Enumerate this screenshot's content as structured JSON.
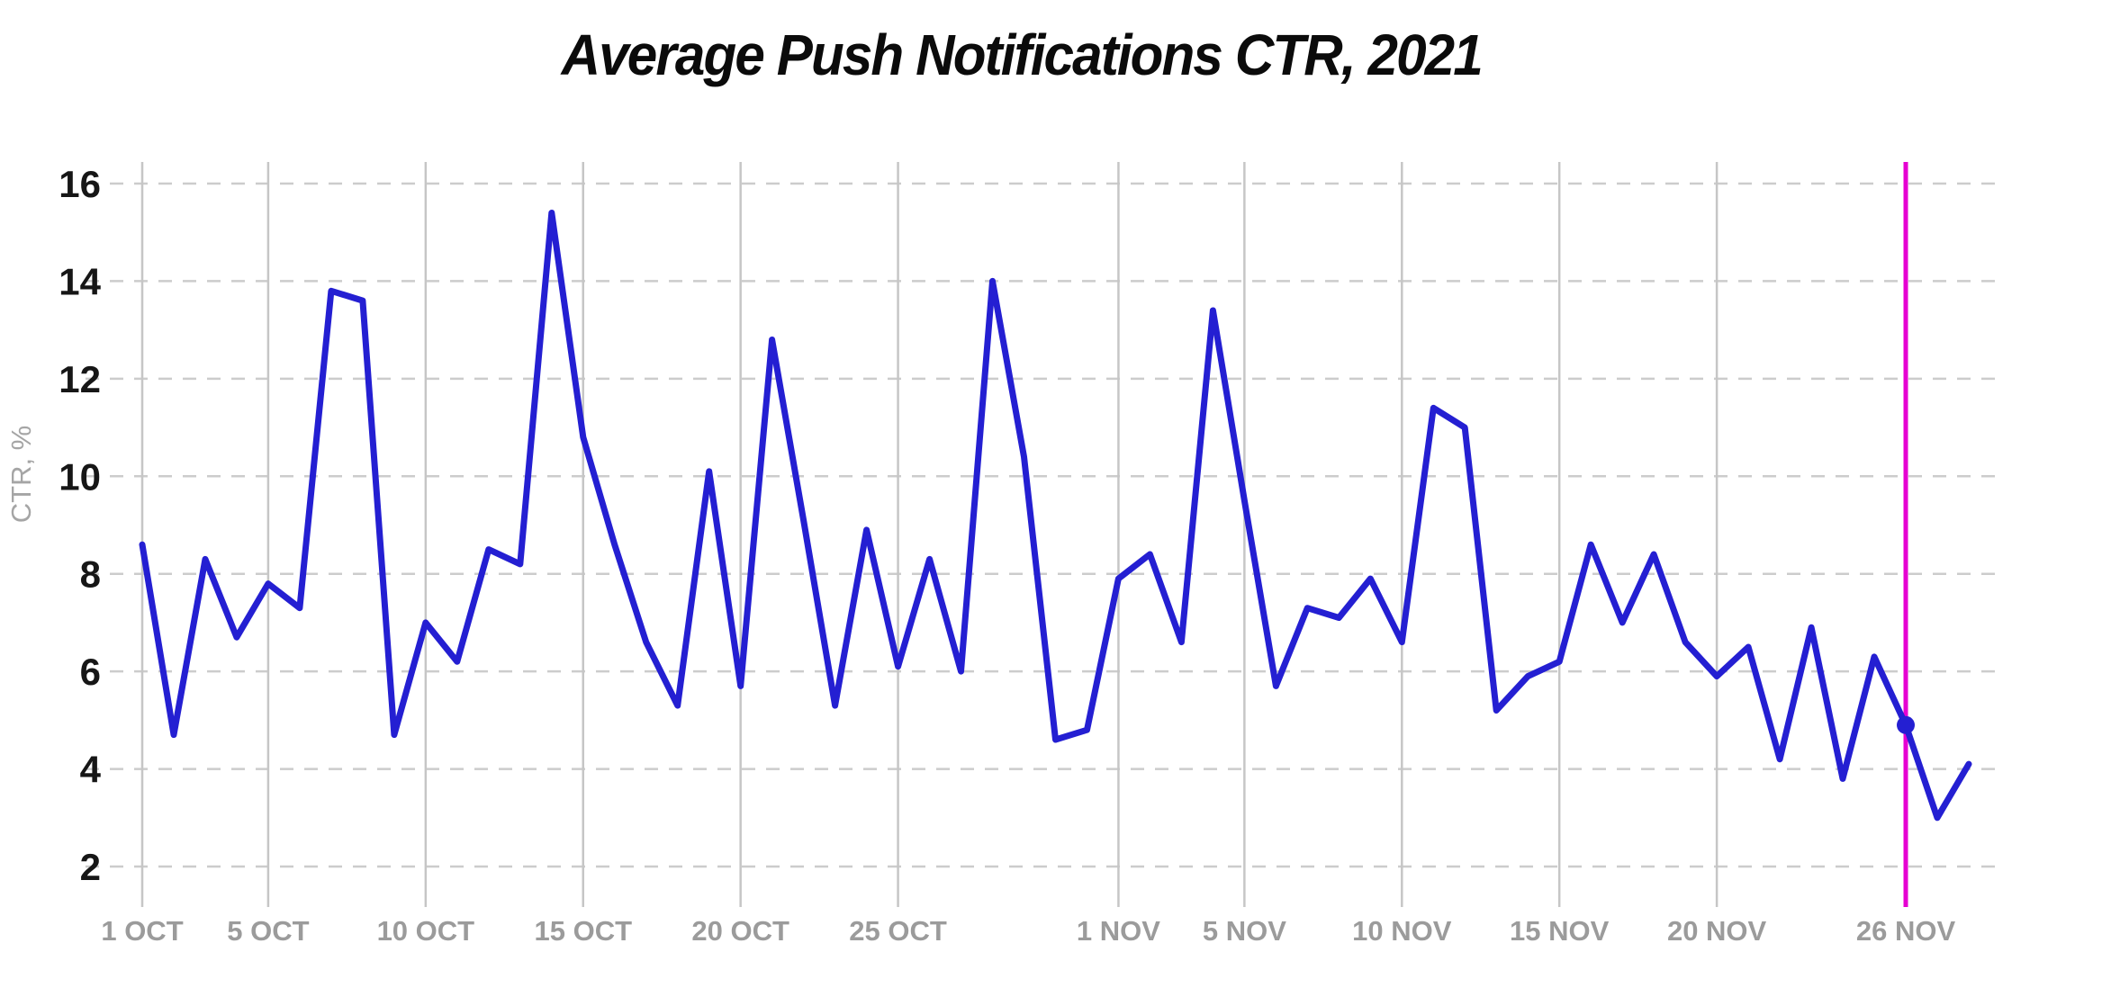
{
  "title": "Average Push Notifications CTR, 2021",
  "colors": {
    "line": "#241fd2",
    "highlight": "#e600d2",
    "grid": "#cccccc",
    "vgrid": "#c6c6c6",
    "tick_gray": "#9b9b9b",
    "tick_dark": "#161616",
    "title": "#0b0b0b",
    "background": "#ffffff"
  },
  "chart_data": {
    "type": "line",
    "title": "Average Push Notifications CTR, 2021",
    "ylabel": "CTR, %",
    "xlabel": "",
    "legend_position": "none",
    "grid": {
      "horizontal": "dashed",
      "vertical": "solid"
    },
    "ylim": [
      2,
      16
    ],
    "yticks": [
      2,
      4,
      6,
      8,
      10,
      12,
      14,
      16
    ],
    "x": [
      "1 OCT",
      "2 OCT",
      "3 OCT",
      "4 OCT",
      "5 OCT",
      "6 OCT",
      "7 OCT",
      "8 OCT",
      "9 OCT",
      "10 OCT",
      "11 OCT",
      "12 OCT",
      "13 OCT",
      "14 OCT",
      "15 OCT",
      "16 OCT",
      "17 OCT",
      "18 OCT",
      "19 OCT",
      "20 OCT",
      "21 OCT",
      "22 OCT",
      "23 OCT",
      "24 OCT",
      "25 OCT",
      "26 OCT",
      "27 OCT",
      "28 OCT",
      "29 OCT",
      "30 OCT",
      "31 OCT",
      "1 NOV",
      "2 NOV",
      "3 NOV",
      "4 NOV",
      "5 NOV",
      "6 NOV",
      "7 NOV",
      "8 NOV",
      "9 NOV",
      "10 NOV",
      "11 NOV",
      "12 NOV",
      "13 NOV",
      "14 NOV",
      "15 NOV",
      "16 NOV",
      "17 NOV",
      "18 NOV",
      "19 NOV",
      "20 NOV",
      "21 NOV",
      "22 NOV",
      "23 NOV",
      "24 NOV",
      "25 NOV",
      "26 NOV",
      "27 NOV",
      "28 NOV"
    ],
    "series": [
      {
        "name": "Average Push Notifications CTR, %",
        "values": [
          8.6,
          4.7,
          8.3,
          6.7,
          7.8,
          7.3,
          13.8,
          13.6,
          4.7,
          7.0,
          6.2,
          8.5,
          8.2,
          15.4,
          10.8,
          8.6,
          6.6,
          5.3,
          10.1,
          5.7,
          12.8,
          9.1,
          5.3,
          8.9,
          6.1,
          8.3,
          6.0,
          14.0,
          10.4,
          4.6,
          4.8,
          7.9,
          8.4,
          6.6,
          13.4,
          9.5,
          5.7,
          7.3,
          7.1,
          7.9,
          6.6,
          11.4,
          11.0,
          5.2,
          5.9,
          6.2,
          8.6,
          7.0,
          8.4,
          6.6,
          5.9,
          6.5,
          4.2,
          6.9,
          3.8,
          6.3,
          4.9,
          3.0,
          4.1
        ]
      }
    ],
    "xticks": [
      {
        "index": 0,
        "label": "1 OCT"
      },
      {
        "index": 4,
        "label": "5 OCT"
      },
      {
        "index": 9,
        "label": "10 OCT"
      },
      {
        "index": 14,
        "label": "15 OCT"
      },
      {
        "index": 19,
        "label": "20 OCT"
      },
      {
        "index": 24,
        "label": "25 OCT"
      },
      {
        "index": 31,
        "label": "1 NOV"
      },
      {
        "index": 35,
        "label": "5 NOV"
      },
      {
        "index": 40,
        "label": "10 NOV"
      },
      {
        "index": 45,
        "label": "15 NOV"
      },
      {
        "index": 50,
        "label": "20 NOV"
      },
      {
        "index": 56,
        "label": "26 NOV",
        "highlight": true
      }
    ],
    "highlight": {
      "label": "26 NOV",
      "index": 56,
      "value": 4.9,
      "marker": "dot"
    }
  }
}
